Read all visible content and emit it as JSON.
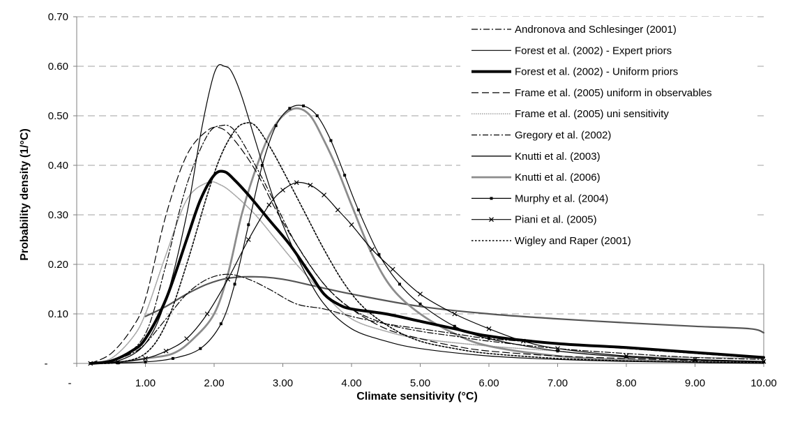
{
  "chart_data": {
    "type": "line",
    "title": "",
    "xlabel": "Climate sensitivity (°C)",
    "ylabel": "Probability density (1/°C)",
    "xlim": [
      0,
      10
    ],
    "ylim": [
      0,
      0.7
    ],
    "x_ticks": [
      0,
      1,
      2,
      3,
      4,
      5,
      6,
      7,
      8,
      9,
      10
    ],
    "x_tick_labels": [
      "-",
      "1.00",
      "2.00",
      "3.00",
      "4.00",
      "5.00",
      "6.00",
      "7.00",
      "8.00",
      "9.00",
      "10.00"
    ],
    "y_ticks": [
      0,
      0.1,
      0.2,
      0.3,
      0.4,
      0.5,
      0.6,
      0.7
    ],
    "y_tick_labels": [
      "-",
      "0.10",
      "0.20",
      "0.30",
      "0.40",
      "0.50",
      "0.60",
      "0.70"
    ],
    "gridlines": "horizontal dashed",
    "legend_position": "top-right",
    "series": [
      {
        "name": "Andronova and Schlesinger (2001)",
        "color": "#000000",
        "width": 1.2,
        "dash": "9,3,2,3",
        "marker": "none",
        "x": [
          0.2,
          0.5,
          0.8,
          1.0,
          1.3,
          1.6,
          1.9,
          2.2,
          2.5,
          2.8,
          3.2,
          3.6,
          4.0,
          4.5,
          5.0,
          5.5,
          6.0,
          7.0,
          8.0,
          9.0,
          10.0
        ],
        "y": [
          0.0,
          0.005,
          0.02,
          0.04,
          0.09,
          0.14,
          0.17,
          0.18,
          0.17,
          0.15,
          0.12,
          0.11,
          0.095,
          0.08,
          0.07,
          0.06,
          0.05,
          0.04,
          0.03,
          0.02,
          0.01
        ]
      },
      {
        "name": "Forest et al. (2002) - Expert priors",
        "color": "#000000",
        "width": 1.2,
        "dash": "",
        "marker": "none",
        "x": [
          0.2,
          0.6,
          1.0,
          1.3,
          1.6,
          1.8,
          1.95,
          2.05,
          2.15,
          2.25,
          2.4,
          2.6,
          2.8,
          3.0,
          3.3,
          3.6,
          4.0,
          4.5,
          5.0,
          6.0,
          7.0,
          8.0,
          10.0
        ],
        "y": [
          0.0,
          0.005,
          0.04,
          0.13,
          0.3,
          0.46,
          0.56,
          0.6,
          0.6,
          0.59,
          0.54,
          0.45,
          0.36,
          0.28,
          0.19,
          0.12,
          0.07,
          0.045,
          0.03,
          0.015,
          0.008,
          0.004,
          0.0
        ]
      },
      {
        "name": "Forest et al. (2002) - Uniform priors",
        "color": "#000000",
        "width": 4,
        "dash": "",
        "marker": "none",
        "x": [
          0.2,
          0.5,
          0.8,
          1.0,
          1.3,
          1.6,
          1.8,
          2.0,
          2.15,
          2.3,
          2.5,
          2.8,
          3.1,
          3.4,
          3.6,
          3.8,
          4.0,
          4.5,
          5.0,
          5.5,
          6.0,
          7.0,
          8.0,
          9.0,
          10.0
        ],
        "y": [
          0.0,
          0.005,
          0.025,
          0.05,
          0.13,
          0.25,
          0.33,
          0.38,
          0.387,
          0.37,
          0.34,
          0.29,
          0.24,
          0.18,
          0.14,
          0.12,
          0.11,
          0.1,
          0.085,
          0.07,
          0.055,
          0.04,
          0.032,
          0.022,
          0.012
        ]
      },
      {
        "name": "Frame et al. (2005) uniform in observables",
        "color": "#000000",
        "width": 1.2,
        "dash": "10,5",
        "marker": "none",
        "x": [
          0.2,
          0.5,
          0.8,
          1.0,
          1.3,
          1.6,
          1.9,
          2.1,
          2.3,
          2.6,
          2.9,
          3.2,
          3.6,
          4.0,
          4.5,
          5.0,
          5.5,
          6.0,
          7.0,
          8.0,
          9.0,
          10.0
        ],
        "y": [
          0.0,
          0.02,
          0.07,
          0.13,
          0.3,
          0.42,
          0.47,
          0.475,
          0.45,
          0.39,
          0.31,
          0.24,
          0.16,
          0.11,
          0.07,
          0.05,
          0.035,
          0.025,
          0.015,
          0.01,
          0.006,
          0.004
        ]
      },
      {
        "name": "Frame et al. (2005) uni sensitivity",
        "color": "#a6a6a6",
        "width": 1.6,
        "dash": "1.5,1.5",
        "marker": "none",
        "x": [
          0.2,
          0.5,
          0.8,
          1.0,
          1.3,
          1.6,
          1.9,
          2.1,
          2.3,
          2.6,
          2.9,
          3.2,
          3.6,
          4.0,
          4.5,
          5.0,
          6.0,
          7.0,
          8.0,
          10.0
        ],
        "y": [
          0.0,
          0.01,
          0.05,
          0.1,
          0.22,
          0.33,
          0.365,
          0.36,
          0.34,
          0.3,
          0.25,
          0.2,
          0.14,
          0.09,
          0.065,
          0.05,
          0.035,
          0.025,
          0.015,
          0.01
        ]
      },
      {
        "name": "Gregory et al. (2002)",
        "color": "#000000",
        "width": 1.2,
        "dash": "8,3,2,3",
        "marker": "none",
        "x": [
          0.2,
          0.6,
          1.0,
          1.3,
          1.6,
          1.9,
          2.1,
          2.3,
          2.6,
          2.9,
          3.2,
          3.6,
          4.0,
          4.5,
          5.0,
          5.5,
          6.0,
          7.0,
          8.0,
          9.0,
          10.0
        ],
        "y": [
          0.0,
          0.01,
          0.06,
          0.2,
          0.36,
          0.46,
          0.48,
          0.47,
          0.4,
          0.32,
          0.24,
          0.16,
          0.11,
          0.08,
          0.065,
          0.055,
          0.045,
          0.03,
          0.02,
          0.012,
          0.008
        ]
      },
      {
        "name": "Knutti et al. (2003)",
        "color": "#555555",
        "width": 2.2,
        "dash": "",
        "marker": "none",
        "x": [
          1.0,
          1.3,
          1.6,
          1.9,
          2.2,
          2.6,
          3.0,
          3.5,
          4.0,
          5.0,
          6.0,
          7.0,
          8.0,
          9.0,
          9.8,
          10.0
        ],
        "y": [
          0.095,
          0.115,
          0.14,
          0.16,
          0.172,
          0.175,
          0.17,
          0.155,
          0.14,
          0.115,
          0.1,
          0.09,
          0.082,
          0.075,
          0.07,
          0.062
        ]
      },
      {
        "name": "Knutti et al. (2006)",
        "color": "#8c8c8c",
        "width": 2.8,
        "dash": "",
        "marker": "none",
        "x": [
          0.2,
          0.6,
          1.0,
          1.4,
          1.7,
          2.0,
          2.2,
          2.4,
          2.6,
          2.8,
          3.0,
          3.2,
          3.4,
          3.6,
          3.8,
          4.0,
          4.3,
          4.6,
          5.0,
          5.5,
          6.0,
          7.0,
          8.0,
          10.0
        ],
        "y": [
          0.0,
          0.002,
          0.01,
          0.02,
          0.05,
          0.1,
          0.18,
          0.3,
          0.39,
          0.46,
          0.5,
          0.515,
          0.5,
          0.45,
          0.39,
          0.32,
          0.22,
          0.15,
          0.1,
          0.06,
          0.035,
          0.015,
          0.007,
          0.002
        ]
      },
      {
        "name": "Murphy et al. (2004)",
        "color": "#000000",
        "width": 1.2,
        "dash": "",
        "marker": "square",
        "x": [
          0.2,
          0.6,
          1.0,
          1.4,
          1.8,
          2.1,
          2.3,
          2.5,
          2.7,
          2.9,
          3.1,
          3.3,
          3.5,
          3.7,
          3.9,
          4.1,
          4.4,
          4.7,
          5.0,
          5.5,
          6.0,
          7.0,
          8.0,
          9.0,
          10.0
        ],
        "y": [
          0.0,
          0.001,
          0.003,
          0.01,
          0.03,
          0.08,
          0.16,
          0.28,
          0.4,
          0.48,
          0.515,
          0.52,
          0.5,
          0.45,
          0.38,
          0.31,
          0.22,
          0.16,
          0.12,
          0.075,
          0.05,
          0.025,
          0.013,
          0.007,
          0.003
        ]
      },
      {
        "name": "Piani et al. (2005)",
        "color": "#000000",
        "width": 1.2,
        "dash": "",
        "marker": "x",
        "x": [
          0.2,
          0.6,
          1.0,
          1.3,
          1.6,
          1.9,
          2.2,
          2.5,
          2.8,
          3.0,
          3.2,
          3.4,
          3.6,
          3.8,
          4.0,
          4.3,
          4.6,
          5.0,
          5.5,
          6.0,
          6.5,
          7.0,
          8.0,
          9.0,
          10.0
        ],
        "y": [
          0.0,
          0.003,
          0.01,
          0.025,
          0.05,
          0.1,
          0.17,
          0.25,
          0.32,
          0.35,
          0.365,
          0.36,
          0.34,
          0.31,
          0.28,
          0.23,
          0.19,
          0.14,
          0.1,
          0.07,
          0.045,
          0.03,
          0.015,
          0.008,
          0.004
        ]
      },
      {
        "name": "Wigley and Raper (2001)",
        "color": "#000000",
        "width": 1.6,
        "dash": "2.5,2.5",
        "marker": "none",
        "x": [
          0.2,
          0.6,
          1.0,
          1.3,
          1.6,
          1.9,
          2.1,
          2.3,
          2.45,
          2.6,
          2.8,
          3.0,
          3.3,
          3.6,
          3.9,
          4.2,
          4.6,
          5.0,
          5.5,
          6.0,
          7.0,
          8.0,
          9.0,
          10.0
        ],
        "y": [
          0.0,
          0.002,
          0.02,
          0.08,
          0.2,
          0.34,
          0.42,
          0.47,
          0.485,
          0.48,
          0.44,
          0.39,
          0.31,
          0.23,
          0.16,
          0.11,
          0.07,
          0.045,
          0.03,
          0.02,
          0.01,
          0.005,
          0.003,
          0.002
        ]
      }
    ]
  }
}
